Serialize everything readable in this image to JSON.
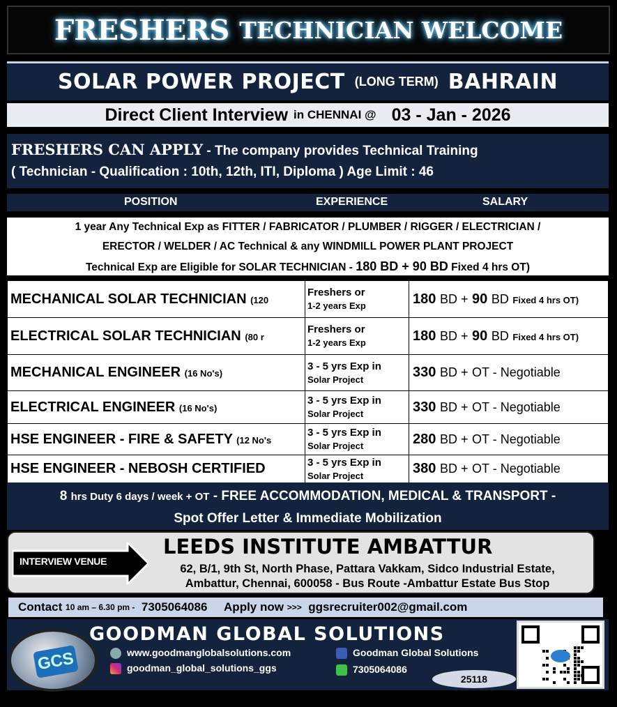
{
  "header": {
    "title_a": "FRESHERS",
    "title_b": "TECHNICIAN WELCOME"
  },
  "project": {
    "name": "SOLAR POWER PROJECT",
    "term": "(LONG TERM)",
    "country": "BAHRAIN"
  },
  "interview": {
    "label": "Direct Client Interview",
    "city": "in CHENNAI @",
    "date": "03 - Jan - 2026"
  },
  "freshers": {
    "headline": "FRESHERS CAN APPLY",
    "training": "- The company provides Technical Training",
    "qualification": "( Technician - Qualification : 10th, 12th, ITI, Diploma )  Age Limit : 46"
  },
  "columns": [
    "POSITION",
    "EXPERIENCE",
    "SALARY"
  ],
  "note": {
    "line1": "1 year Any Technical Exp as FITTER / FABRICATOR / PLUMBER / RIGGER / ELECTRICIAN /",
    "line2": "ERECTOR / WELDER / AC Technical & any WINDMILL POWER PLANT PROJECT",
    "line3a": "Technical Exp are Eligible for SOLAR TECHNICIAN -",
    "line3b": "180 BD + 90 BD",
    "line3c": "Fixed 4 hrs OT)"
  },
  "positions": [
    {
      "title": "MECHANICAL SOLAR TECHNICIAN",
      "count": "(120",
      "exp1": "Freshers or",
      "exp2": "1-2 years Exp",
      "salary": "180",
      "unit": "BD +",
      "extra": "90",
      "extra_unit": "BD",
      "tail": "Fixed 4 hrs OT)"
    },
    {
      "title": "ELECTRICAL SOLAR TECHNICIAN",
      "count": "(80 r",
      "exp1": "Freshers or",
      "exp2": "1-2 years Exp",
      "salary": "180",
      "unit": "BD +",
      "extra": "90",
      "extra_unit": "BD",
      "tail": "Fixed 4 hrs OT)"
    },
    {
      "title": "MECHANICAL ENGINEER",
      "count": "(16 No's)",
      "exp1": "3 - 5 yrs Exp in",
      "exp2": "Solar Project",
      "salary": "330",
      "unit": "BD +",
      "extra": "OT - Negotiable"
    },
    {
      "title": "ELECTRICAL ENGINEER",
      "count": "(16 No's)",
      "exp1": "3 - 5 yrs Exp in",
      "exp2": "Solar Project",
      "salary": "330",
      "unit": "BD +",
      "extra": "OT - Negotiable"
    },
    {
      "title": "HSE ENGINEER - FIRE & SAFETY",
      "count": "(12 No's",
      "exp1": "3 - 5 yrs Exp in",
      "exp2": "Solar Project",
      "salary": "280",
      "unit": "BD +",
      "extra": "OT - Negotiable"
    },
    {
      "title": "HSE ENGINEER - NEBOSH CERTIFIED",
      "count": "",
      "exp1": "3 - 5 yrs Exp in",
      "exp2": "Solar Project",
      "salary": "380",
      "unit": "BD +",
      "extra": "OT - Negotiable"
    }
  ],
  "duty": {
    "line1a": "8",
    "line1b": "hrs Duty 6 days / week + OT",
    "line1c": "- FREE ACCOMMODATION, MEDICAL & TRANSPORT -",
    "line2": "Spot Offer Letter & Immediate Mobilization"
  },
  "venue": {
    "label": "INTERVIEW VENUE",
    "name": "LEEDS INSTITUTE AMBATTUR",
    "addr1": "62, B/1, 9th St, North Phase, Pattara Vakkam, Sidco Industrial Estate,",
    "addr2": "Ambattur, Chennai, 600058 -   Bus Route -Ambattur Estate Bus Stop"
  },
  "contact": {
    "label": "Contact",
    "hours": "10 am – 6.30 pm -",
    "phone": "7305064086",
    "apply": "Apply now",
    "arrows": ">>>",
    "email": "ggsrecruiter002@gmail.com"
  },
  "footer": {
    "company": "GOODMAN GLOBAL SOLUTIONS",
    "logo_text": "GCS",
    "website": "www.goodmanglobalsolutions.com",
    "facebook": "Goodman Global Solutions",
    "instagram": "goodman_global_solutions_ggs",
    "whatsapp": "7305064086",
    "ref": "25118"
  },
  "colors": {
    "navy": "#13233d",
    "light": "#e9ecf1",
    "contact_bg": "#c9d6ea"
  }
}
